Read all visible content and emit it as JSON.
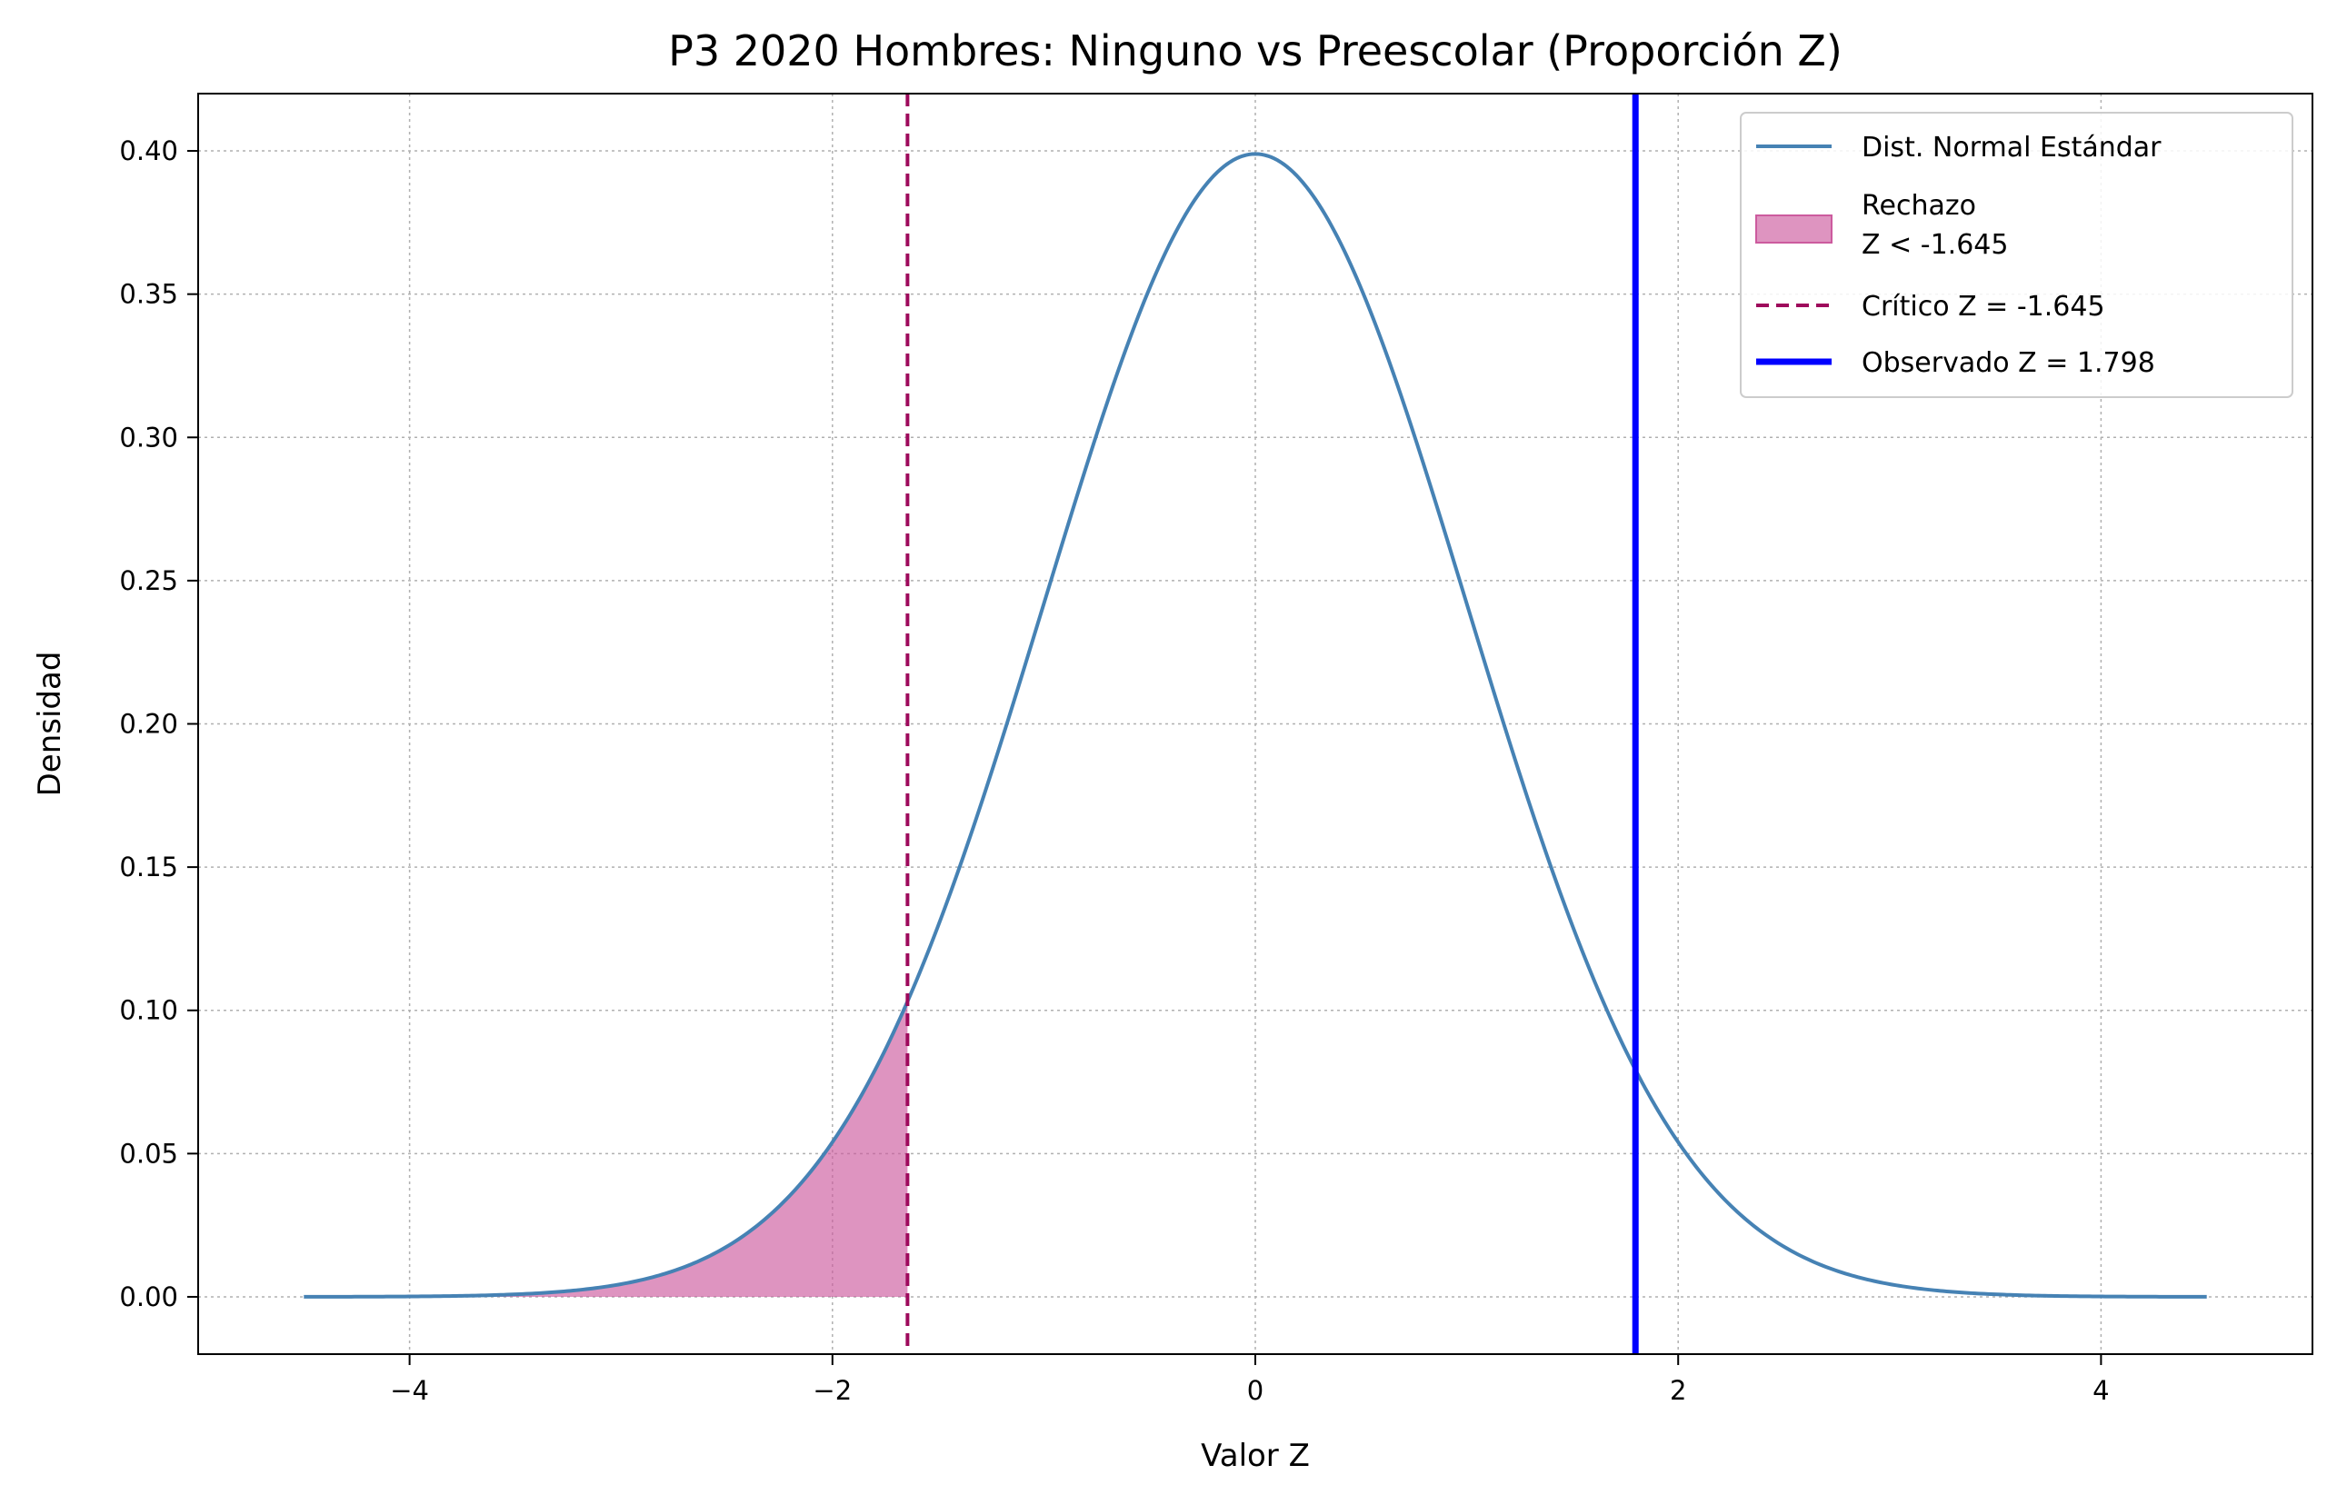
{
  "chart_data": {
    "type": "line",
    "title": "P3 2020 Hombres: Ninguno vs Preescolar (Proporción Z)",
    "xlabel": "Valor Z",
    "ylabel": "Densidad",
    "xlim": [
      -5,
      5
    ],
    "ylim": [
      -0.02,
      0.42
    ],
    "xticks": [
      -4,
      -2,
      0,
      2,
      4
    ],
    "xtick_labels": [
      "−4",
      "−2",
      "0",
      "2",
      "4"
    ],
    "yticks": [
      0,
      0.05,
      0.1,
      0.15,
      0.2,
      0.25,
      0.3,
      0.35,
      0.4
    ],
    "ytick_labels": [
      "0.00",
      "0.05",
      "0.10",
      "0.15",
      "0.20",
      "0.25",
      "0.30",
      "0.35",
      "0.40"
    ],
    "grid": true,
    "legend_position": "top-right",
    "curve": {
      "label": "Dist. Normal Estándar",
      "distribution": "standard normal",
      "x_range": [
        -4.5,
        4.5
      ],
      "color": "#4682b4"
    },
    "rejection_region": {
      "label_line1": "Rechazo",
      "label_line2": "Z < -1.645",
      "x_from": -4.5,
      "x_to": -1.645,
      "color": "#cc5b9e"
    },
    "critical_line": {
      "label": "Crítico Z = -1.645",
      "x": -1.645,
      "color": "#9e0a5c"
    },
    "observed_line": {
      "label": "Observado Z = 1.798",
      "x": 1.798,
      "color": "#0000ff"
    }
  }
}
